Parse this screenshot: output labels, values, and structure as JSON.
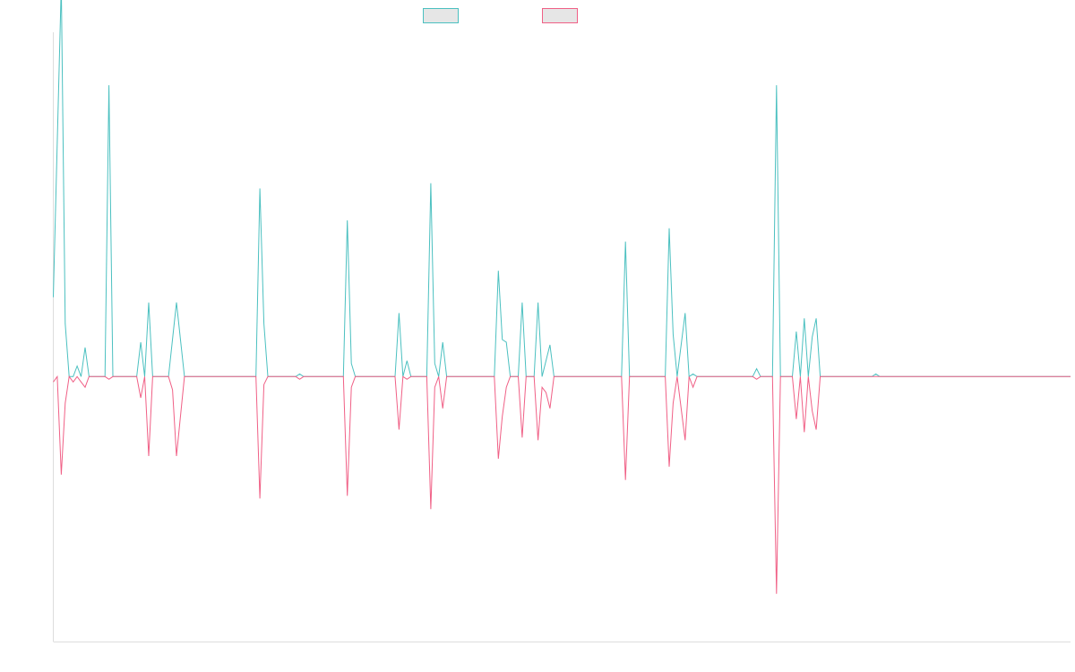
{
  "chart_data": {
    "type": "line",
    "title": "",
    "xlabel": "",
    "ylabel": "",
    "legend_position": "top-center",
    "grid": false,
    "ylim": [
      -1,
      1.3
    ],
    "xlim": [
      0,
      256
    ],
    "series": [
      {
        "name": "",
        "color": "#4bc0c0",
        "fill": "#e6e6e6",
        "points": [
          [
            0,
            0.3
          ],
          [
            2,
            1.48
          ],
          [
            3,
            0.2
          ],
          [
            4,
            0.0
          ],
          [
            5,
            0.0
          ],
          [
            6,
            0.04
          ],
          [
            7,
            0.0
          ],
          [
            8,
            0.11
          ],
          [
            9,
            0.0
          ],
          [
            13,
            0.0
          ],
          [
            14,
            1.1
          ],
          [
            15,
            0.0
          ],
          [
            21,
            0.0
          ],
          [
            22,
            0.13
          ],
          [
            23,
            0.0
          ],
          [
            24,
            0.28
          ],
          [
            25,
            0.0
          ],
          [
            29,
            0.0
          ],
          [
            31,
            0.28
          ],
          [
            33,
            0.0
          ],
          [
            51,
            0.0
          ],
          [
            52,
            0.71
          ],
          [
            53,
            0.2
          ],
          [
            54,
            0.0
          ],
          [
            61,
            0.0
          ],
          [
            62,
            0.01
          ],
          [
            63,
            0.0
          ],
          [
            73,
            0.0
          ],
          [
            74,
            0.59
          ],
          [
            75,
            0.05
          ],
          [
            76,
            0.0
          ],
          [
            86,
            0.0
          ],
          [
            87,
            0.24
          ],
          [
            88,
            0.0
          ],
          [
            89,
            0.06
          ],
          [
            90,
            0.0
          ],
          [
            94,
            0.0
          ],
          [
            95,
            0.73
          ],
          [
            96,
            0.05
          ],
          [
            97,
            0.0
          ],
          [
            98,
            0.13
          ],
          [
            99,
            0.0
          ],
          [
            111,
            0.0
          ],
          [
            112,
            0.4
          ],
          [
            113,
            0.14
          ],
          [
            114,
            0.13
          ],
          [
            115,
            0.0
          ],
          [
            117,
            0.0
          ],
          [
            118,
            0.28
          ],
          [
            119,
            0.0
          ],
          [
            121,
            0.0
          ],
          [
            122,
            0.28
          ],
          [
            123,
            0.0
          ],
          [
            125,
            0.12
          ],
          [
            126,
            0.0
          ],
          [
            143,
            0.0
          ],
          [
            144,
            0.51
          ],
          [
            145,
            0.0
          ],
          [
            154,
            0.0
          ],
          [
            155,
            0.56
          ],
          [
            156,
            0.16
          ],
          [
            157,
            0.0
          ],
          [
            159,
            0.24
          ],
          [
            160,
            0.0
          ],
          [
            161,
            0.01
          ],
          [
            162,
            0.0
          ],
          [
            169,
            0.0
          ],
          [
            176,
            0.0
          ],
          [
            177,
            0.03
          ],
          [
            178,
            0.0
          ],
          [
            181,
            0.0
          ],
          [
            182,
            1.1
          ],
          [
            183,
            0.0
          ],
          [
            186,
            0.0
          ],
          [
            187,
            0.17
          ],
          [
            188,
            0.0
          ],
          [
            189,
            0.22
          ],
          [
            190,
            0.0
          ],
          [
            191,
            0.15
          ],
          [
            192,
            0.22
          ],
          [
            193,
            0.0
          ],
          [
            206,
            0.0
          ],
          [
            207,
            0.01
          ],
          [
            208,
            0.0
          ],
          [
            256,
            0.0
          ]
        ]
      },
      {
        "name": "",
        "color": "#f06086",
        "fill": "#e6e6e6",
        "points": [
          [
            0,
            -0.02
          ],
          [
            1,
            0.0
          ],
          [
            2,
            -0.37
          ],
          [
            3,
            -0.1
          ],
          [
            4,
            0.0
          ],
          [
            5,
            -0.02
          ],
          [
            6,
            0.0
          ],
          [
            7,
            -0.02
          ],
          [
            8,
            -0.04
          ],
          [
            9,
            0.0
          ],
          [
            13,
            0.0
          ],
          [
            14,
            -0.01
          ],
          [
            15,
            0.0
          ],
          [
            21,
            0.0
          ],
          [
            22,
            -0.08
          ],
          [
            23,
            0.0
          ],
          [
            24,
            -0.3
          ],
          [
            25,
            0.0
          ],
          [
            29,
            0.0
          ],
          [
            30,
            -0.05
          ],
          [
            31,
            -0.3
          ],
          [
            33,
            0.0
          ],
          [
            51,
            0.0
          ],
          [
            52,
            -0.46
          ],
          [
            53,
            -0.03
          ],
          [
            54,
            0.0
          ],
          [
            61,
            0.0
          ],
          [
            62,
            -0.01
          ],
          [
            63,
            0.0
          ],
          [
            73,
            0.0
          ],
          [
            74,
            -0.45
          ],
          [
            75,
            -0.04
          ],
          [
            76,
            0.0
          ],
          [
            86,
            0.0
          ],
          [
            87,
            -0.2
          ],
          [
            88,
            0.0
          ],
          [
            89,
            -0.01
          ],
          [
            90,
            0.0
          ],
          [
            94,
            0.0
          ],
          [
            95,
            -0.5
          ],
          [
            96,
            -0.04
          ],
          [
            97,
            0.0
          ],
          [
            98,
            -0.12
          ],
          [
            99,
            0.0
          ],
          [
            111,
            0.0
          ],
          [
            112,
            -0.31
          ],
          [
            113,
            -0.15
          ],
          [
            114,
            -0.04
          ],
          [
            115,
            0.0
          ],
          [
            117,
            0.0
          ],
          [
            118,
            -0.23
          ],
          [
            119,
            0.0
          ],
          [
            121,
            0.0
          ],
          [
            122,
            -0.24
          ],
          [
            123,
            -0.04
          ],
          [
            124,
            -0.06
          ],
          [
            125,
            -0.12
          ],
          [
            126,
            0.0
          ],
          [
            143,
            0.0
          ],
          [
            144,
            -0.39
          ],
          [
            145,
            0.0
          ],
          [
            154,
            0.0
          ],
          [
            155,
            -0.34
          ],
          [
            156,
            -0.1
          ],
          [
            157,
            0.0
          ],
          [
            159,
            -0.24
          ],
          [
            160,
            0.0
          ],
          [
            161,
            -0.04
          ],
          [
            162,
            0.0
          ],
          [
            169,
            0.0
          ],
          [
            176,
            0.0
          ],
          [
            177,
            -0.01
          ],
          [
            178,
            0.0
          ],
          [
            181,
            0.0
          ],
          [
            182,
            -0.82
          ],
          [
            183,
            0.0
          ],
          [
            186,
            0.0
          ],
          [
            187,
            -0.16
          ],
          [
            188,
            0.0
          ],
          [
            189,
            -0.21
          ],
          [
            190,
            0.0
          ],
          [
            191,
            -0.13
          ],
          [
            192,
            -0.2
          ],
          [
            193,
            0.0
          ],
          [
            256,
            0.0
          ]
        ]
      }
    ]
  }
}
